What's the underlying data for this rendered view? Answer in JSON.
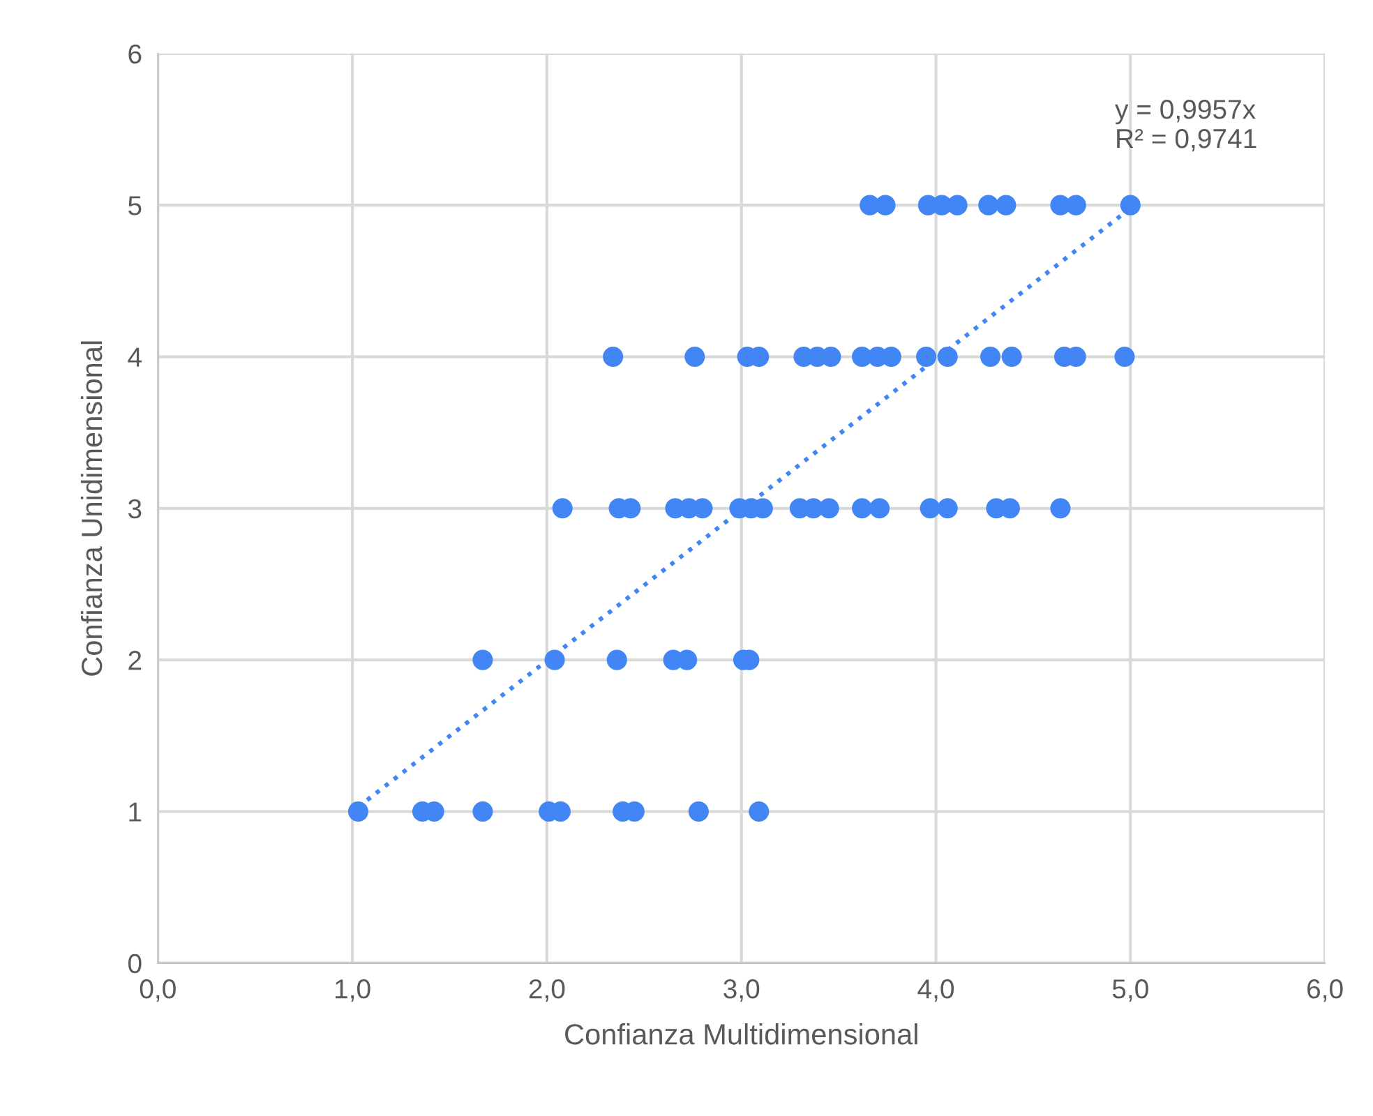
{
  "chart_data": {
    "type": "scatter",
    "xlabel": "Confianza Multidimensional",
    "ylabel": "Confianza Unidimensional",
    "annotations": [
      "y = 0,9957x\nR² = 0,9741"
    ],
    "xlim": [
      0,
      6
    ],
    "ylim": [
      0,
      6
    ],
    "xticks": [
      {
        "value": 0,
        "label": "0,0"
      },
      {
        "value": 1,
        "label": "1,0"
      },
      {
        "value": 2,
        "label": "2,0"
      },
      {
        "value": 3,
        "label": "3,0"
      },
      {
        "value": 4,
        "label": "4,0"
      },
      {
        "value": 5,
        "label": "5,0"
      },
      {
        "value": 6,
        "label": "6,0"
      }
    ],
    "yticks": [
      0,
      1,
      2,
      3,
      4,
      5,
      6
    ],
    "grid": true,
    "marker": "circle",
    "series": [
      {
        "color": "#4285f4",
        "x": [
          3.66,
          3.74,
          3.96,
          4.03,
          4.11,
          4.27,
          4.36,
          4.64,
          4.72,
          5.0,
          2.34,
          2.76,
          3.03,
          3.09,
          3.32,
          3.39,
          3.46,
          3.62,
          3.7,
          3.77,
          3.95,
          4.06,
          4.28,
          4.39,
          4.66,
          4.72,
          4.97,
          2.08,
          2.37,
          2.43,
          2.66,
          2.73,
          2.8,
          2.99,
          3.05,
          3.11,
          3.3,
          3.37,
          3.45,
          3.62,
          3.71,
          3.97,
          4.06,
          4.31,
          4.38,
          4.64,
          1.67,
          2.04,
          2.36,
          2.65,
          2.72,
          3.01,
          3.04,
          1.03,
          1.36,
          1.42,
          1.67,
          2.01,
          2.07,
          2.39,
          2.45,
          2.78,
          3.09
        ],
        "values": [
          5,
          5,
          5,
          5,
          5,
          5,
          5,
          5,
          5,
          5,
          4,
          4,
          4,
          4,
          4,
          4,
          4,
          4,
          4,
          4,
          4,
          4,
          4,
          4,
          4,
          4,
          4,
          3,
          3,
          3,
          3,
          3,
          3,
          3,
          3,
          3,
          3,
          3,
          3,
          3,
          3,
          3,
          3,
          3,
          3,
          3,
          2,
          2,
          2,
          2,
          2,
          2,
          2,
          1,
          1,
          1,
          1,
          1,
          1,
          1,
          1,
          1,
          1
        ]
      },
      {
        "type": "line",
        "color": "#4285f4",
        "line_style": "dotted",
        "marker": "none",
        "x": [
          1.03,
          5.0
        ],
        "values": [
          1.03,
          4.98
        ]
      }
    ]
  }
}
